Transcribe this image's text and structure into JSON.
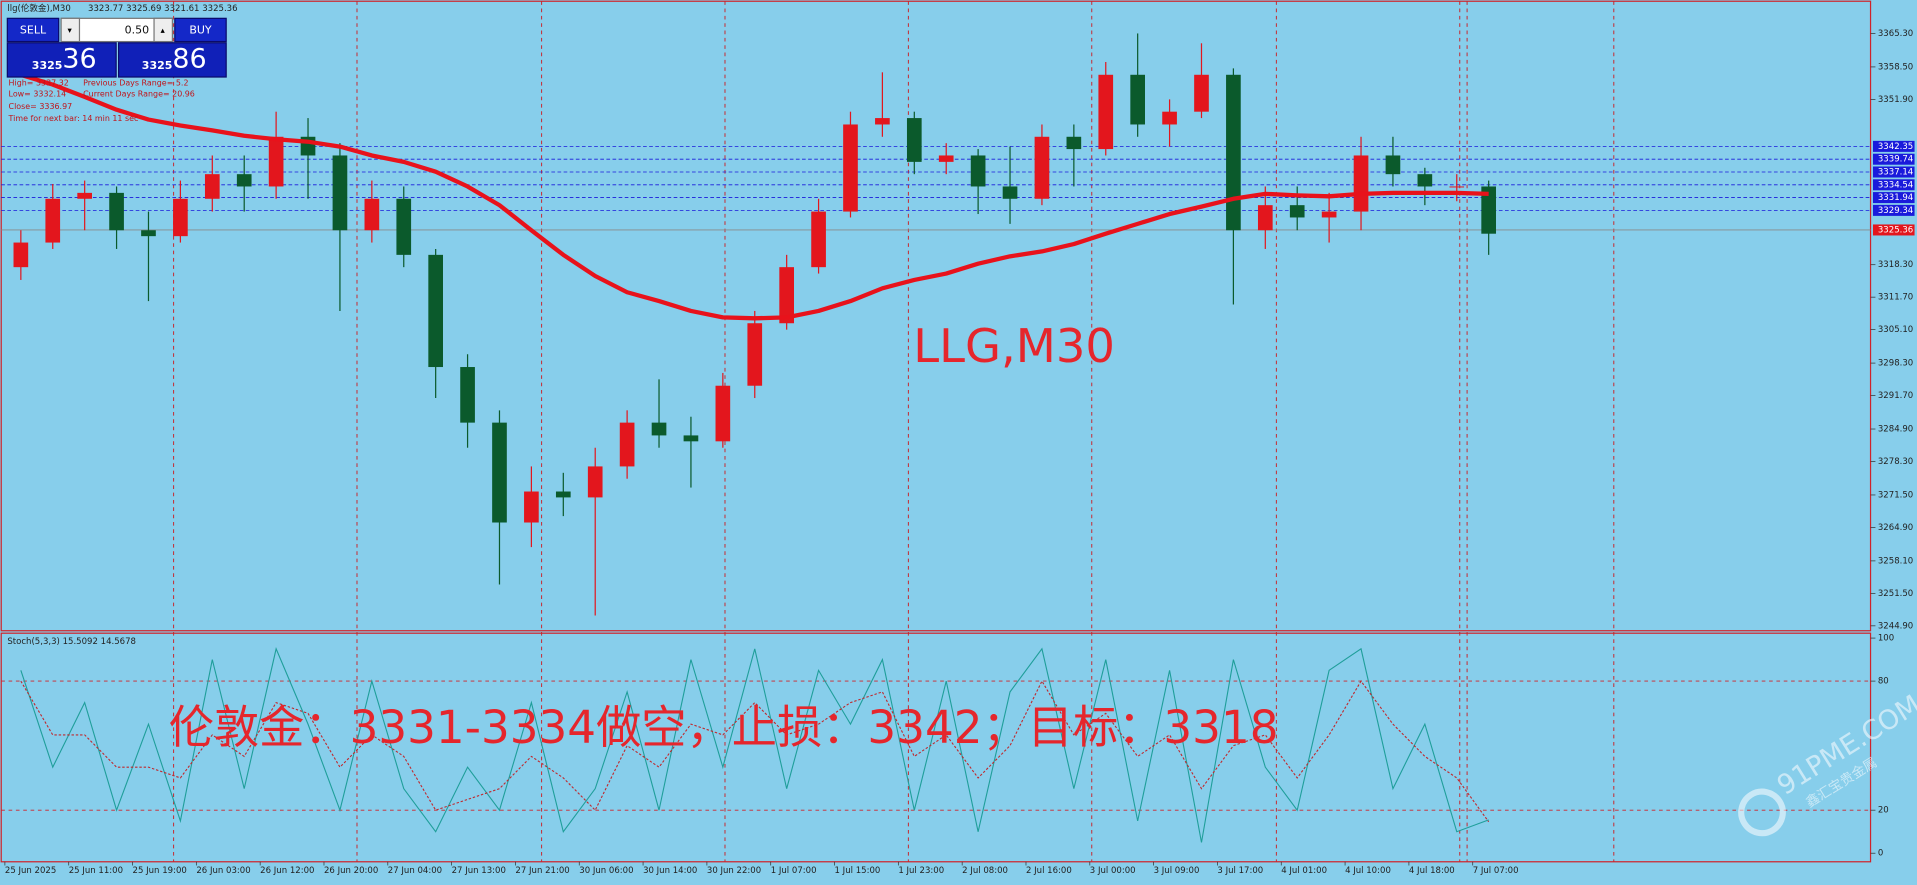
{
  "header": {
    "symbol": "llg(伦敦金),M30",
    "ohlc": "3323.77 3325.69 3321.61 3325.36"
  },
  "trade_panel": {
    "sell": "SELL",
    "buy": "BUY",
    "lot": "0.50",
    "bid_big": "3325",
    "bid_small": "36",
    "ask_big": "3325",
    "ask_small": "86"
  },
  "info": [
    "High= 3337.32",
    "Previous Days Range= 5.2",
    "Low= 3332.14",
    "Current Days Range= 20.96",
    "Close= 3336.97",
    "Time for next bar: 14 min 11 sec"
  ],
  "annotations": {
    "chart_label": "LLG,M30",
    "signal": "伦敦金：3331-3334做空，止损：3342；目标：3318",
    "watermark": "91PME.COM",
    "watermark_cn": "鑫汇宝贵金属"
  },
  "chart_data": [
    {
      "type": "candlestick",
      "up_color": "#e3161d",
      "down_color": "#0b5a2c",
      "categories": [
        "25 Jun 2025",
        null,
        "25 Jun 11:00",
        null,
        "25 Jun 19:00",
        null,
        "26 Jun 03:00",
        null,
        "26 Jun 12:00",
        null,
        "26 Jun 20:00",
        null,
        "27 Jun 04:00",
        null,
        "27 Jun 13:00",
        null,
        "27 Jun 21:00",
        null,
        "30 Jun 06:00",
        null,
        "30 Jun 14:00",
        null,
        "30 Jun 22:00",
        null,
        "1 Jul 07:00",
        null,
        "1 Jul 15:00",
        null,
        "1 Jul 23:00",
        null,
        "2 Jul 08:00",
        null,
        "2 Jul 16:00",
        null,
        "3 Jul 00:00",
        null,
        "3 Jul 09:00",
        null,
        "3 Jul 17:00",
        null,
        "4 Jul 01:00",
        null,
        "4 Jul 10:00",
        null,
        "4 Jul 18:00",
        null,
        "7 Jul 07:00"
      ],
      "open": [
        3317.8,
        3322.8,
        3331.7,
        3332.9,
        3325.3,
        3324.1,
        3331.7,
        3336.7,
        3334.2,
        3344.3,
        3340.5,
        3325.3,
        3331.7,
        3320.3,
        3297.5,
        3286.2,
        3265.9,
        3272.2,
        3271.0,
        3277.3,
        3286.2,
        3283.6,
        3282.4,
        3293.7,
        3306.4,
        3317.8,
        3329.1,
        3346.8,
        3348.1,
        3339.2,
        3340.5,
        3334.2,
        3331.7,
        3344.3,
        3341.8,
        3356.9,
        3346.8,
        3349.4,
        3356.9,
        3325.3,
        3330.4,
        3327.9,
        3329.1,
        3340.5,
        3336.7,
        3334.2,
        3334.2
      ],
      "high": [
        3325.3,
        3334.7,
        3335.4,
        3334.2,
        3329.1,
        3335.4,
        3340.5,
        3340.5,
        3349.4,
        3348.1,
        3343.0,
        3335.4,
        3334.2,
        3321.5,
        3300.1,
        3288.7,
        3277.3,
        3276.0,
        3281.1,
        3288.7,
        3295.0,
        3287.4,
        3296.3,
        3308.9,
        3320.3,
        3331.7,
        3349.4,
        3357.4,
        3349.4,
        3343.0,
        3341.8,
        3342.3,
        3346.8,
        3346.8,
        3359.5,
        3365.3,
        3351.9,
        3363.3,
        3358.2,
        3334.2,
        3334.2,
        3332.9,
        3344.3,
        3344.3,
        3338.0,
        3336.7,
        3335.4
      ],
      "low": [
        3315.2,
        3321.5,
        3325.3,
        3321.5,
        3310.9,
        3322.8,
        3329.1,
        3329.1,
        3331.7,
        3331.7,
        3308.9,
        3322.8,
        3317.8,
        3291.2,
        3281.1,
        3253.3,
        3260.9,
        3267.2,
        3247.0,
        3274.8,
        3281.1,
        3273.0,
        3281.1,
        3291.2,
        3305.1,
        3316.5,
        3327.9,
        3344.3,
        3336.7,
        3336.7,
        3328.6,
        3326.6,
        3330.4,
        3334.2,
        3340.5,
        3344.3,
        3342.3,
        3348.1,
        3310.2,
        3321.5,
        3325.3,
        3322.8,
        3325.3,
        3334.2,
        3330.4,
        3331.2,
        3320.3
      ],
      "close": [
        3322.8,
        3331.7,
        3332.9,
        3325.3,
        3324.1,
        3331.7,
        3336.7,
        3334.2,
        3344.3,
        3340.5,
        3325.3,
        3331.7,
        3320.3,
        3297.5,
        3286.2,
        3265.9,
        3272.2,
        3271.0,
        3277.3,
        3286.2,
        3283.6,
        3282.4,
        3293.7,
        3306.4,
        3317.8,
        3329.1,
        3346.8,
        3348.1,
        3339.2,
        3340.5,
        3334.2,
        3331.7,
        3344.3,
        3341.8,
        3356.9,
        3346.8,
        3349.4,
        3356.9,
        3325.3,
        3330.4,
        3327.9,
        3329.1,
        3340.5,
        3336.7,
        3334.2,
        3334.2,
        3324.6
      ],
      "ma": {
        "color": "#e8121b",
        "values": [
          3356.9,
          3354.9,
          3352.4,
          3349.8,
          3347.8,
          3346.6,
          3345.6,
          3344.5,
          3343.8,
          3343.3,
          3342.3,
          3340.5,
          3339.2,
          3337.2,
          3334.2,
          3330.4,
          3325.3,
          3320.3,
          3316.0,
          3312.7,
          3310.9,
          3308.9,
          3307.6,
          3307.4,
          3307.6,
          3308.9,
          3310.9,
          3313.5,
          3315.2,
          3316.5,
          3318.5,
          3320.0,
          3321.0,
          3322.5,
          3324.6,
          3326.6,
          3328.6,
          3330.1,
          3331.7,
          3332.7,
          3332.4,
          3332.2,
          3332.7,
          3332.9,
          3332.9,
          3332.9,
          3332.7
        ]
      },
      "levels": [
        3342.35,
        3339.74,
        3337.14,
        3334.54,
        3331.94,
        3329.34
      ],
      "level_color": "#1a1adb",
      "last_price": 3325.36,
      "last_price_color": "#e3161d",
      "ylim": [
        3243.9,
        3372.1
      ],
      "yticks": [
        {
          "value": 3365.3,
          "label": "3365.30"
        },
        {
          "value": 3358.5,
          "label": "3358.50"
        },
        {
          "value": 3351.9,
          "label": "3351.90"
        },
        {
          "value": 3318.3,
          "label": "3318.30"
        },
        {
          "value": 3311.7,
          "label": "3311.70"
        },
        {
          "value": 3305.1,
          "label": "3305.10"
        },
        {
          "value": 3298.3,
          "label": "3298.30"
        },
        {
          "value": 3291.7,
          "label": "3291.70"
        },
        {
          "value": 3284.9,
          "label": "3284.90"
        },
        {
          "value": 3278.3,
          "label": "3278.30"
        },
        {
          "value": 3271.5,
          "label": "3271.50"
        },
        {
          "value": 3264.9,
          "label": "3264.90"
        },
        {
          "value": 3258.1,
          "label": "3258.10"
        },
        {
          "value": 3251.5,
          "label": "3251.50"
        },
        {
          "value": 3244.9,
          "label": "3244.90"
        }
      ]
    },
    {
      "type": "line",
      "title": "Stoch(5,3,3) 15.5092 14.5678",
      "series": [
        {
          "color": "#1f9e9a",
          "values": [
            85,
            40,
            70,
            20,
            60,
            15,
            90,
            30,
            95,
            60,
            20,
            80,
            30,
            10,
            40,
            20,
            70,
            10,
            30,
            75,
            20,
            90,
            40,
            95,
            30,
            85,
            60,
            90,
            20,
            80,
            10,
            75,
            95,
            30,
            90,
            15,
            85,
            5,
            90,
            40,
            20,
            85,
            95,
            30,
            60,
            10,
            15.5
          ]
        },
        {
          "color": "#c0282d",
          "values": [
            80,
            55,
            55,
            40,
            40,
            35,
            55,
            45,
            70,
            65,
            40,
            55,
            45,
            20,
            25,
            30,
            45,
            35,
            20,
            50,
            40,
            60,
            55,
            70,
            55,
            60,
            70,
            75,
            45,
            55,
            35,
            50,
            80,
            55,
            65,
            45,
            55,
            30,
            50,
            55,
            35,
            55,
            80,
            60,
            45,
            35,
            14.6
          ]
        }
      ],
      "levels": [
        20,
        80
      ],
      "ylim": [
        0,
        100
      ],
      "yticks": [
        0,
        20,
        80,
        100
      ]
    }
  ]
}
